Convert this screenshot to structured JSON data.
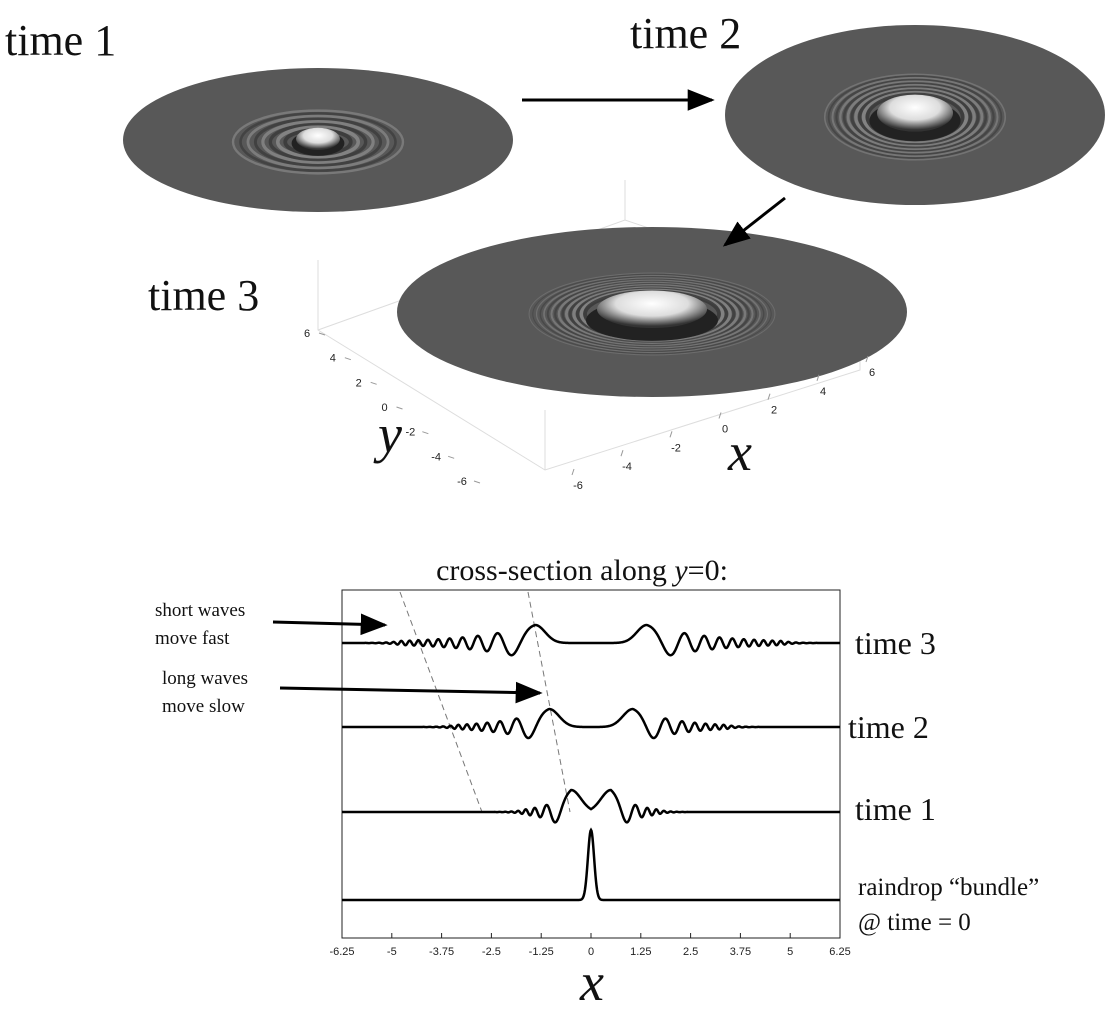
{
  "panels": {
    "time1_label": "time 1",
    "time2_label": "time 2",
    "time3_label": "time 3",
    "axes3d": {
      "yticks": [
        6,
        4,
        2,
        0,
        -2,
        -4,
        -6
      ],
      "xticks": [
        -6,
        -4,
        -2,
        0,
        2,
        4,
        6
      ],
      "ylabel": "y",
      "xlabel": "x"
    }
  },
  "cross_section": {
    "title": {
      "prefix": "cross-section along ",
      "var": "y",
      "suffix": "=0:"
    },
    "xlim": [
      -6.25,
      6.25
    ],
    "xticks": [
      -6.25,
      -5,
      -3.75,
      -2.5,
      -1.25,
      0,
      1.25,
      2.5,
      3.75,
      5,
      6.25
    ],
    "xlabel": "x",
    "annotations": {
      "short": [
        "short waves",
        "move fast"
      ],
      "long": [
        "long waves",
        "move slow"
      ]
    },
    "row_labels": [
      "time 3",
      "time 2",
      "time 1"
    ],
    "initial_label": [
      "raindrop “bundle”",
      "@ time = 0"
    ]
  }
}
